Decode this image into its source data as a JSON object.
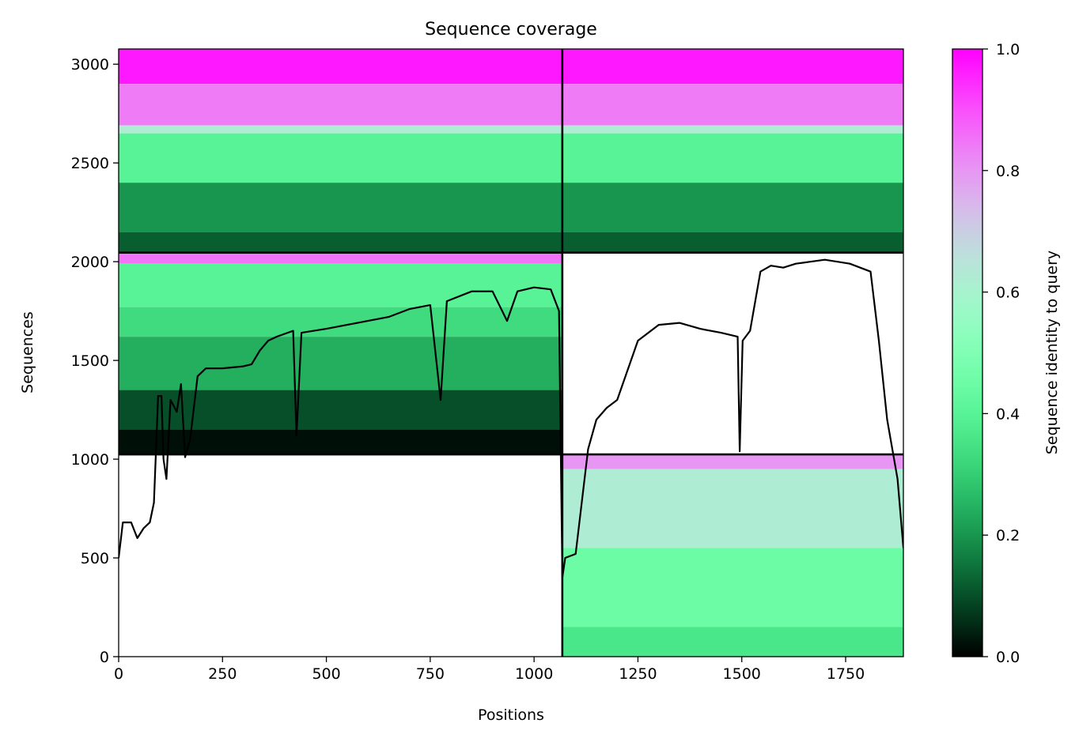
{
  "chart_data": {
    "type": "heatmap",
    "title": "Sequence coverage",
    "xlabel": "Positions",
    "ylabel": "Sequences",
    "colorbar_label": "Sequence identity to query",
    "xlim": [
      0,
      1889
    ],
    "ylim": [
      0,
      3077
    ],
    "x_ticks": [
      0,
      250,
      500,
      750,
      1000,
      1250,
      1500,
      1750
    ],
    "y_ticks": [
      0,
      500,
      1000,
      1500,
      2000,
      2500,
      3000
    ],
    "colorbar_range": [
      0,
      1
    ],
    "colorbar_ticks": [
      0.0,
      0.2,
      0.4,
      0.6,
      0.8,
      1.0
    ],
    "colorbar_tick_labels": [
      "0.0",
      "0.2",
      "0.4",
      "0.6",
      "0.8",
      "1.0"
    ],
    "colormap": "rainbow",
    "grid": false,
    "segment_boundaries": {
      "x": [
        1068
      ],
      "y": [
        1024,
        2046
      ]
    },
    "blocks": [
      {
        "block": "chain-A-only",
        "x_range": [
          0,
          1068
        ],
        "y_range": [
          1024,
          2046
        ],
        "identity_bands": [
          {
            "seq": [
              2046,
              1990
            ],
            "identity": 0.85
          },
          {
            "seq": [
              1990,
              1770
            ],
            "identity": 0.4
          },
          {
            "seq": [
              1770,
              1620
            ],
            "identity": 0.33
          },
          {
            "seq": [
              1620,
              1350
            ],
            "identity": 0.24
          },
          {
            "seq": [
              1350,
              1150
            ],
            "identity": 0.1
          },
          {
            "seq": [
              1150,
              1024
            ],
            "identity": 0.02
          }
        ]
      },
      {
        "block": "chain-B-only",
        "x_range": [
          1068,
          1889
        ],
        "y_range": [
          0,
          1024
        ],
        "identity_bands": [
          {
            "seq": [
              1024,
              950
            ],
            "identity": 0.8
          },
          {
            "seq": [
              950,
              550
            ],
            "identity": 0.62
          },
          {
            "seq": [
              550,
              150
            ],
            "identity": 0.45
          },
          {
            "seq": [
              150,
              0
            ],
            "identity": 0.36
          }
        ]
      },
      {
        "block": "paired-A",
        "x_range": [
          0,
          1068
        ],
        "y_range": [
          2046,
          3077
        ],
        "identity_bands": [
          {
            "seq": [
              3077,
              2900
            ],
            "identity": 0.97
          },
          {
            "seq": [
              2900,
              2690
            ],
            "identity": 0.84
          },
          {
            "seq": [
              2690,
              2650
            ],
            "identity": 0.62
          },
          {
            "seq": [
              2650,
              2400
            ],
            "identity": 0.4
          },
          {
            "seq": [
              2400,
              2150
            ],
            "identity": 0.2
          },
          {
            "seq": [
              2150,
              2046
            ],
            "identity": 0.12
          }
        ]
      },
      {
        "block": "paired-B",
        "x_range": [
          1068,
          1889
        ],
        "y_range": [
          2046,
          3077
        ],
        "identity_bands": [
          {
            "seq": [
              3077,
              2900
            ],
            "identity": 0.97
          },
          {
            "seq": [
              2900,
              2690
            ],
            "identity": 0.84
          },
          {
            "seq": [
              2690,
              2650
            ],
            "identity": 0.62
          },
          {
            "seq": [
              2650,
              2400
            ],
            "identity": 0.4
          },
          {
            "seq": [
              2400,
              2150
            ],
            "identity": 0.2
          },
          {
            "seq": [
              2150,
              2046
            ],
            "identity": 0.12
          }
        ]
      }
    ],
    "series": [
      {
        "type": "line",
        "color": "#000000",
        "points": [
          [
            0,
            500
          ],
          [
            10,
            680
          ],
          [
            30,
            680
          ],
          [
            45,
            600
          ],
          [
            60,
            650
          ],
          [
            75,
            680
          ],
          [
            85,
            780
          ],
          [
            95,
            1320
          ],
          [
            103,
            1320
          ],
          [
            108,
            1000
          ],
          [
            115,
            900
          ],
          [
            125,
            1300
          ],
          [
            140,
            1240
          ],
          [
            150,
            1380
          ],
          [
            160,
            1010
          ],
          [
            172,
            1100
          ],
          [
            190,
            1420
          ],
          [
            210,
            1460
          ],
          [
            250,
            1460
          ],
          [
            300,
            1470
          ],
          [
            320,
            1480
          ],
          [
            340,
            1550
          ],
          [
            360,
            1600
          ],
          [
            380,
            1620
          ],
          [
            420,
            1650
          ],
          [
            428,
            1120
          ],
          [
            440,
            1640
          ],
          [
            500,
            1660
          ],
          [
            550,
            1680
          ],
          [
            600,
            1700
          ],
          [
            650,
            1720
          ],
          [
            700,
            1760
          ],
          [
            750,
            1780
          ],
          [
            775,
            1300
          ],
          [
            790,
            1800
          ],
          [
            850,
            1850
          ],
          [
            900,
            1850
          ],
          [
            935,
            1700
          ],
          [
            960,
            1850
          ],
          [
            1000,
            1870
          ],
          [
            1040,
            1860
          ],
          [
            1060,
            1750
          ],
          [
            1068,
            400
          ],
          [
            1075,
            500
          ],
          [
            1100,
            520
          ],
          [
            1130,
            1050
          ],
          [
            1150,
            1200
          ],
          [
            1175,
            1260
          ],
          [
            1200,
            1300
          ],
          [
            1225,
            1450
          ],
          [
            1250,
            1600
          ],
          [
            1300,
            1680
          ],
          [
            1350,
            1690
          ],
          [
            1400,
            1660
          ],
          [
            1450,
            1640
          ],
          [
            1490,
            1620
          ],
          [
            1495,
            1040
          ],
          [
            1502,
            1600
          ],
          [
            1520,
            1650
          ],
          [
            1545,
            1950
          ],
          [
            1570,
            1980
          ],
          [
            1600,
            1970
          ],
          [
            1630,
            1990
          ],
          [
            1665,
            2000
          ],
          [
            1700,
            2010
          ],
          [
            1760,
            1990
          ],
          [
            1810,
            1950
          ],
          [
            1830,
            1600
          ],
          [
            1850,
            1200
          ],
          [
            1875,
            900
          ],
          [
            1889,
            550
          ]
        ]
      }
    ]
  }
}
